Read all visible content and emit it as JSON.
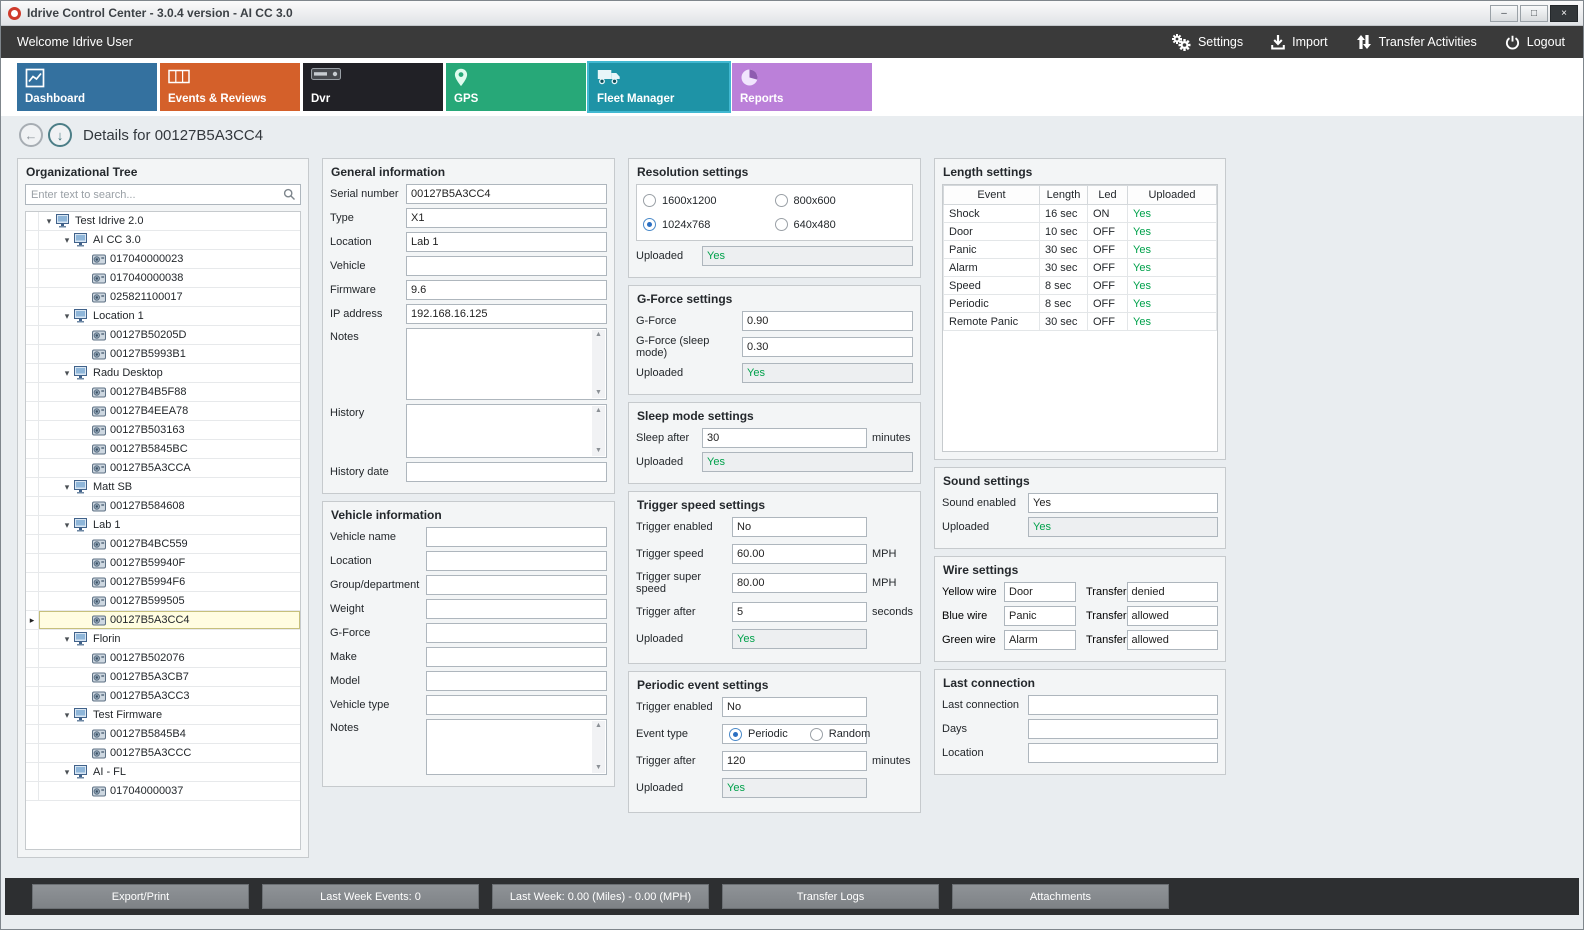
{
  "window": {
    "title": "Idrive Control Center - 3.0.4 version - AI CC 3.0"
  },
  "welcome_bar": {
    "text": "Welcome Idrive User",
    "actions": [
      {
        "label": "Settings",
        "icon": "gears-icon"
      },
      {
        "label": "Import",
        "icon": "import-icon"
      },
      {
        "label": "Transfer Activities",
        "icon": "transfer-arrows-icon"
      },
      {
        "label": "Logout",
        "icon": "power-icon"
      }
    ]
  },
  "tabs": [
    {
      "label": "Dashboard",
      "color": "#34719f",
      "selected": false
    },
    {
      "label": "Events & Reviews",
      "color": "#d4602a",
      "selected": false
    },
    {
      "label": "Dvr",
      "color": "#212126",
      "selected": false
    },
    {
      "label": "GPS",
      "color": "#27a878",
      "selected": false
    },
    {
      "label": "Fleet Manager",
      "color": "#1e93a6",
      "selected": true
    },
    {
      "label": "Reports",
      "color": "#bb80d9",
      "selected": false
    }
  ],
  "details_header": {
    "title": "Details for 00127B5A3CC4"
  },
  "org_tree": {
    "title": "Organizational Tree",
    "search_placeholder": "Enter text to search...",
    "nodes": [
      {
        "label": "Test Idrive 2.0",
        "level": 0,
        "type": "group"
      },
      {
        "label": "AI CC 3.0",
        "level": 1,
        "type": "group"
      },
      {
        "label": "017040000023",
        "level": 2,
        "type": "device"
      },
      {
        "label": "017040000038",
        "level": 2,
        "type": "device"
      },
      {
        "label": "025821100017",
        "level": 2,
        "type": "device"
      },
      {
        "label": "Location 1",
        "level": 1,
        "type": "group"
      },
      {
        "label": "00127B50205D",
        "level": 2,
        "type": "device"
      },
      {
        "label": "00127B5993B1",
        "level": 2,
        "type": "device"
      },
      {
        "label": "Radu Desktop",
        "level": 1,
        "type": "group"
      },
      {
        "label": "00127B4B5F88",
        "level": 2,
        "type": "device"
      },
      {
        "label": "00127B4EEA78",
        "level": 2,
        "type": "device"
      },
      {
        "label": "00127B503163",
        "level": 2,
        "type": "device"
      },
      {
        "label": "00127B5845BC",
        "level": 2,
        "type": "device"
      },
      {
        "label": "00127B5A3CCA",
        "level": 2,
        "type": "device"
      },
      {
        "label": "Matt SB",
        "level": 1,
        "type": "group"
      },
      {
        "label": "00127B584608",
        "level": 2,
        "type": "device"
      },
      {
        "label": "Lab 1",
        "level": 1,
        "type": "group"
      },
      {
        "label": "00127B4BC559",
        "level": 2,
        "type": "device"
      },
      {
        "label": "00127B59940F",
        "level": 2,
        "type": "device"
      },
      {
        "label": "00127B5994F6",
        "level": 2,
        "type": "device"
      },
      {
        "label": "00127B599505",
        "level": 2,
        "type": "device"
      },
      {
        "label": "00127B5A3CC4",
        "level": 2,
        "type": "device",
        "selected": true
      },
      {
        "label": "Florin",
        "level": 1,
        "type": "group"
      },
      {
        "label": "00127B502076",
        "level": 2,
        "type": "device"
      },
      {
        "label": "00127B5A3CB7",
        "level": 2,
        "type": "device"
      },
      {
        "label": "00127B5A3CC3",
        "level": 2,
        "type": "device"
      },
      {
        "label": "Test Firmware",
        "level": 1,
        "type": "group"
      },
      {
        "label": "00127B5845B4",
        "level": 2,
        "type": "device"
      },
      {
        "label": "00127B5A3CCC",
        "level": 2,
        "type": "device"
      },
      {
        "label": "AI - FL",
        "level": 1,
        "type": "group"
      },
      {
        "label": "017040000037",
        "level": 2,
        "type": "device"
      }
    ]
  },
  "general_info": {
    "title": "General information",
    "fields": [
      {
        "label": "Serial number",
        "value": "00127B5A3CC4"
      },
      {
        "label": "Type",
        "value": "X1"
      },
      {
        "label": "Location",
        "value": "Lab 1"
      },
      {
        "label": "Vehicle",
        "value": ""
      },
      {
        "label": "Firmware",
        "value": "9.6"
      },
      {
        "label": "IP address",
        "value": "192.168.16.125"
      }
    ],
    "notes_label": "Notes",
    "notes_value": "",
    "history_label": "History",
    "history_value": "",
    "history_date_label": "History date",
    "history_date_value": ""
  },
  "vehicle_info": {
    "title": "Vehicle information",
    "fields": [
      {
        "label": "Vehicle name",
        "value": ""
      },
      {
        "label": "Location",
        "value": ""
      },
      {
        "label": "Group/department",
        "value": ""
      },
      {
        "label": "Weight",
        "value": ""
      },
      {
        "label": "G-Force",
        "value": ""
      },
      {
        "label": "Make",
        "value": ""
      },
      {
        "label": "Model",
        "value": ""
      },
      {
        "label": "Vehicle type",
        "value": ""
      }
    ],
    "notes_label": "Notes",
    "notes_value": ""
  },
  "resolution": {
    "title": "Resolution settings",
    "options": [
      {
        "label": "1600x1200",
        "selected": false
      },
      {
        "label": "800x600",
        "selected": false
      },
      {
        "label": "1024x768",
        "selected": true
      },
      {
        "label": "640x480",
        "selected": false
      }
    ],
    "uploaded_label": "Uploaded",
    "uploaded_value": "Yes"
  },
  "gforce": {
    "title": "G-Force settings",
    "fields": [
      {
        "label": "G-Force",
        "value": "0.90"
      },
      {
        "label": "G-Force (sleep mode)",
        "value": "0.30"
      }
    ],
    "uploaded_label": "Uploaded",
    "uploaded_value": "Yes"
  },
  "sleep": {
    "title": "Sleep mode settings",
    "sleep_after_label": "Sleep after",
    "sleep_after_value": "30",
    "sleep_after_unit": "minutes",
    "uploaded_label": "Uploaded",
    "uploaded_value": "Yes"
  },
  "trigger_speed": {
    "title": "Trigger speed settings",
    "fields": [
      {
        "label": "Trigger enabled",
        "value": "No",
        "unit": ""
      },
      {
        "label": "Trigger speed",
        "value": "60.00",
        "unit": "MPH"
      },
      {
        "label": "Trigger super speed",
        "value": "80.00",
        "unit": "MPH"
      },
      {
        "label": "Trigger after",
        "value": "5",
        "unit": "seconds"
      }
    ],
    "uploaded_label": "Uploaded",
    "uploaded_value": "Yes"
  },
  "periodic": {
    "title": "Periodic event settings",
    "trigger_enabled_label": "Trigger enabled",
    "trigger_enabled_value": "No",
    "event_type_label": "Event type",
    "event_type_options": [
      {
        "label": "Periodic",
        "selected": true
      },
      {
        "label": "Random",
        "selected": false
      }
    ],
    "trigger_after_label": "Trigger after",
    "trigger_after_value": "120",
    "trigger_after_unit": "minutes",
    "uploaded_label": "Uploaded",
    "uploaded_value": "Yes"
  },
  "length_settings": {
    "title": "Length settings",
    "columns": [
      "Event",
      "Length",
      "Led",
      "Uploaded"
    ],
    "rows": [
      [
        "Shock",
        "16 sec",
        "ON",
        "Yes"
      ],
      [
        "Door",
        "10 sec",
        "OFF",
        "Yes"
      ],
      [
        "Panic",
        "30 sec",
        "OFF",
        "Yes"
      ],
      [
        "Alarm",
        "30 sec",
        "OFF",
        "Yes"
      ],
      [
        "Speed",
        "8 sec",
        "OFF",
        "Yes"
      ],
      [
        "Periodic",
        "8 sec",
        "OFF",
        "Yes"
      ],
      [
        "Remote Panic",
        "30 sec",
        "OFF",
        "Yes"
      ]
    ]
  },
  "sound": {
    "title": "Sound settings",
    "enabled_label": "Sound enabled",
    "enabled_value": "Yes",
    "uploaded_label": "Uploaded",
    "uploaded_value": "Yes"
  },
  "wire": {
    "title": "Wire settings",
    "rows": [
      {
        "label": "Yellow wire",
        "value": "Door",
        "transfer_label": "Transfer",
        "transfer_value": "denied"
      },
      {
        "label": "Blue wire",
        "value": "Panic",
        "transfer_label": "Transfer",
        "transfer_value": "allowed"
      },
      {
        "label": "Green wire",
        "value": "Alarm",
        "transfer_label": "Transfer",
        "transfer_value": "allowed"
      }
    ]
  },
  "last_connection": {
    "title": "Last connection",
    "fields": [
      {
        "label": "Last connection",
        "value": ""
      },
      {
        "label": "Days",
        "value": ""
      },
      {
        "label": "Location",
        "value": ""
      }
    ]
  },
  "bottom_bar": {
    "buttons": [
      "Export/Print",
      "Last Week Events: 0",
      "Last Week: 0.00 (Miles) - 0.00 (MPH)",
      "Transfer Logs",
      "Attachments"
    ]
  },
  "colors": {
    "uploaded_green": "#00A14B",
    "selected_tab_border": "#41B8D1",
    "selected_row_bg": "#FFFDE1"
  }
}
